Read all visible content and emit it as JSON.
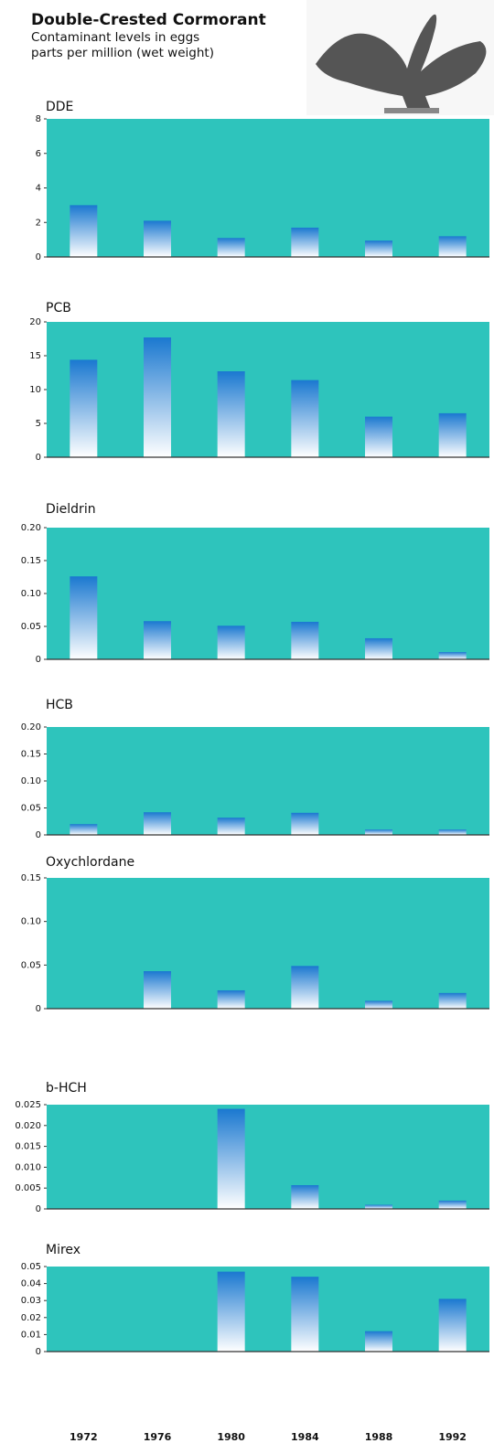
{
  "header": {
    "title": "Double-Crested Cormorant",
    "subtitle": [
      "Contaminant levels in eggs",
      "parts per million (wet weight)"
    ]
  },
  "categories": [
    "1972",
    "1976",
    "1980",
    "1984",
    "1988",
    "1992"
  ],
  "chart_data": [
    {
      "type": "bar",
      "title": "DDE",
      "values": [
        3.0,
        2.1,
        1.1,
        1.7,
        0.95,
        1.2
      ],
      "ylim": [
        0,
        8
      ],
      "yticks": [
        0,
        2,
        4,
        6,
        8
      ],
      "color": "#1a78d0",
      "background": "#2ec4bc"
    },
    {
      "type": "bar",
      "title": "PCB",
      "values": [
        14.4,
        17.7,
        12.7,
        11.4,
        6.0,
        6.5
      ],
      "ylim": [
        0,
        20
      ],
      "yticks": [
        0,
        5,
        10,
        15,
        20
      ],
      "color": "#1a78d0",
      "background": "#2ec4bc"
    },
    {
      "type": "bar",
      "title": "Dieldrin",
      "values": [
        0.126,
        0.058,
        0.051,
        0.057,
        0.032,
        0.011
      ],
      "ylim": [
        0,
        0.2
      ],
      "yticks": [
        0,
        0.05,
        {
          "value": 0.1,
          "label": "0.10"
        },
        0.15,
        {
          "value": 0.2,
          "label": "0.20"
        }
      ],
      "color": "#1a78d0",
      "background": "#2ec4bc"
    },
    {
      "type": "bar",
      "title": "HCB",
      "values": [
        0.02,
        0.042,
        0.032,
        0.041,
        0.01,
        0.01
      ],
      "ylim": [
        0,
        0.2
      ],
      "yticks": [
        0,
        0.05,
        {
          "value": 0.1,
          "label": "0.10"
        },
        0.15,
        {
          "value": 0.2,
          "label": "0.20"
        }
      ],
      "color": "#1a78d0",
      "background": "#2ec4bc"
    },
    {
      "type": "bar",
      "title": "Oxychlordane",
      "values": [
        0,
        0.043,
        0.021,
        0.049,
        0.009,
        0.018
      ],
      "ylim": [
        0,
        0.15
      ],
      "yticks": [
        0,
        0.05,
        {
          "value": 0.1,
          "label": "0.10"
        },
        0.15
      ],
      "color": "#1a78d0",
      "background": "#2ec4bc"
    },
    {
      "type": "bar",
      "title": "b-HCH",
      "values": [
        0,
        0,
        0.024,
        0.0057,
        0.001,
        0.002
      ],
      "ylim": [
        0,
        0.025
      ],
      "yticks": [
        0,
        0.005,
        {
          "value": 0.01,
          "label": "0.010"
        },
        0.015,
        {
          "value": 0.02,
          "label": "0.020"
        },
        0.025
      ],
      "color": "#1a78d0",
      "background": "#2ec4bc"
    },
    {
      "type": "bar",
      "title": "Mirex",
      "values": [
        0,
        0,
        0.047,
        0.044,
        0.012,
        0.031
      ],
      "ylim": [
        0,
        0.05
      ],
      "yticks": [
        0,
        0.01,
        0.02,
        0.03,
        0.04,
        0.05
      ],
      "color": "#1a78d0",
      "background": "#2ec4bc"
    }
  ]
}
